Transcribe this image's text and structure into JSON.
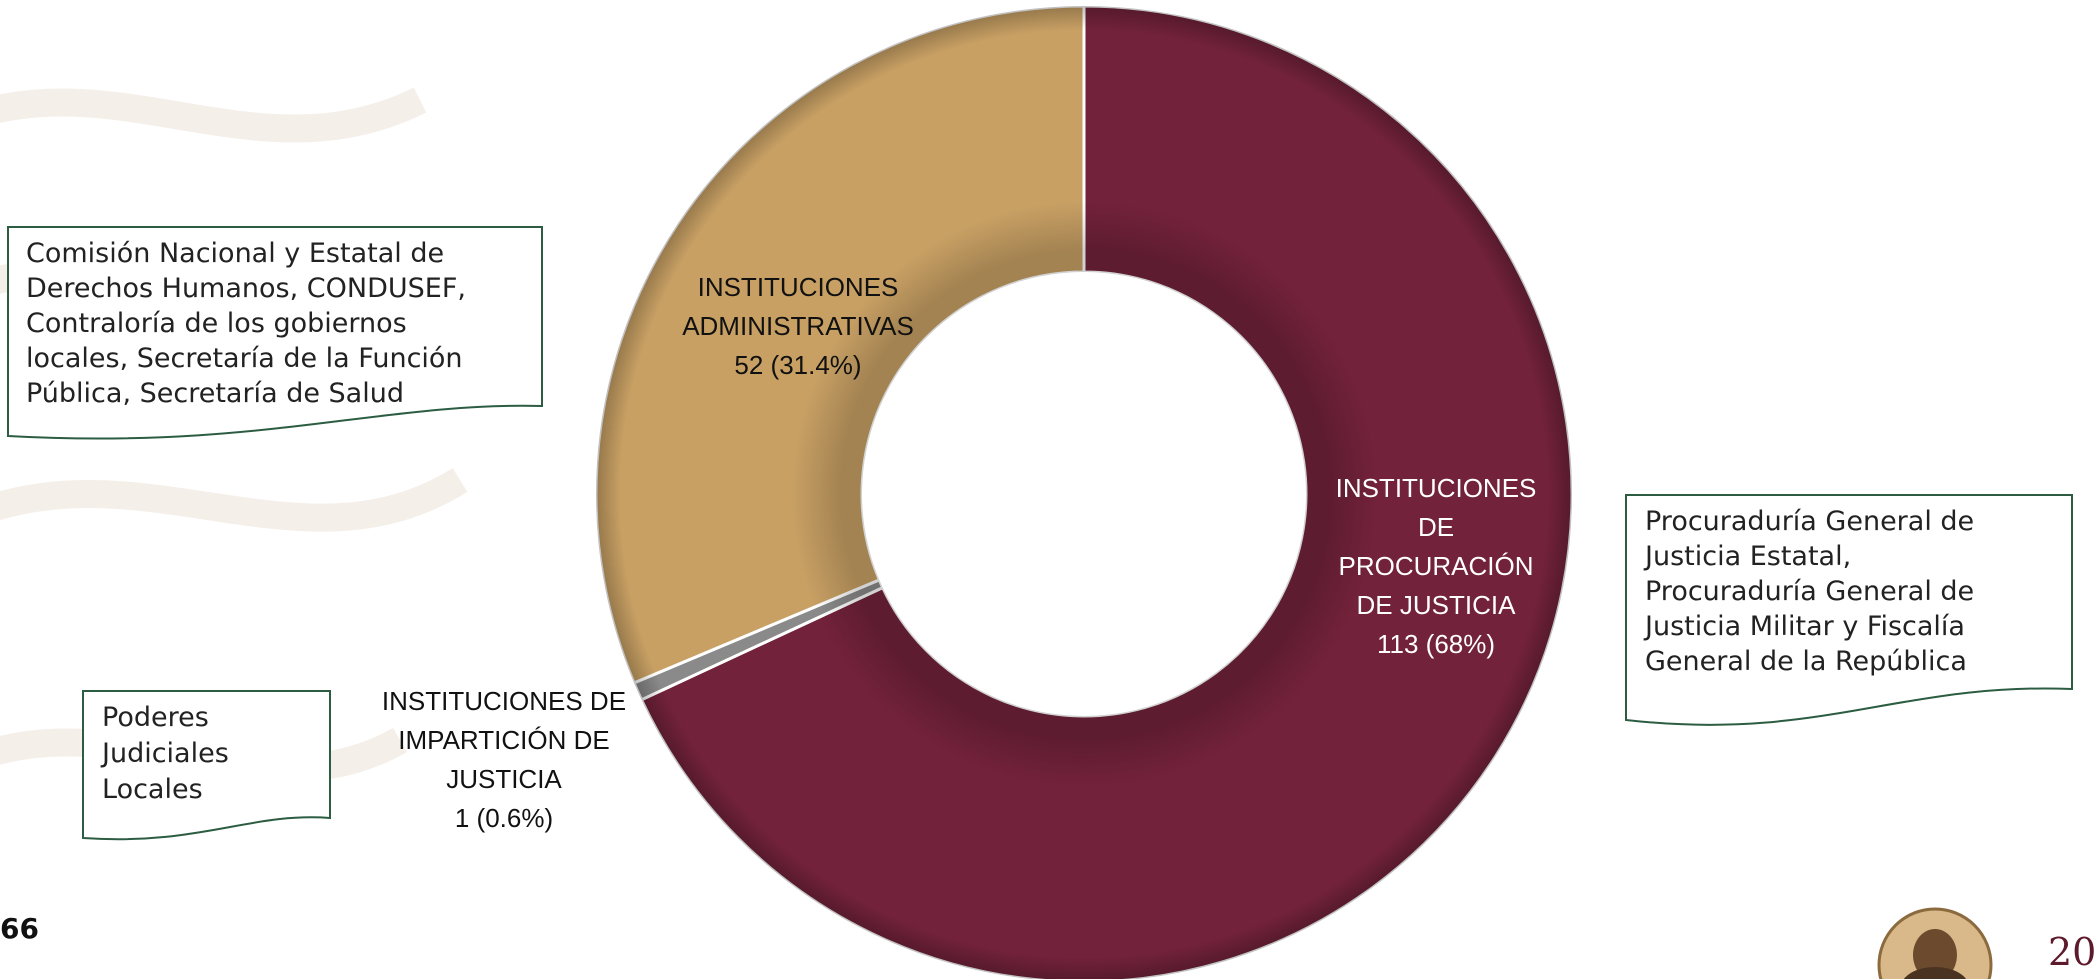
{
  "chart_data": {
    "type": "pie",
    "donut": true,
    "title": "",
    "categories": [
      "INSTITUCIONES DE PROCURACIÓN DE JUSTICIA",
      "INSTITUCIONES DE IMPARTICIÓN DE JUSTICIA",
      "INSTITUCIONES ADMINISTRATIVAS"
    ],
    "values": [
      113,
      1,
      52
    ],
    "percents": [
      "68%",
      "0.6%",
      "31.4%"
    ],
    "colors": [
      "#72223a",
      "#8a8a8a",
      "#c8a064"
    ],
    "labels": {
      "procuracion": "INSTITUCIONES\nDE\nPROCURACIÓN\nDE JUSTICIA\n113 (68%)",
      "imparticion": "INSTITUCIONES DE\nIMPARTICIÓN DE\nJUSTICIA\n1 (0.6%)",
      "administrativas": "INSTITUCIONES\nADMINISTRATIVAS\n52 (31.4%)"
    },
    "legend": "none"
  },
  "notes": {
    "administrativas": "Comisión Nacional y  Estatal de\nDerechos Humanos, CONDUSEF,\nContraloría de los gobiernos\nlocales, Secretaría de la Función\nPública, Secretaría de Salud",
    "imparticion": "Poderes\nJudiciales\nLocales",
    "procuracion": "Procuraduría General de\nJusticia Estatal,\nProcuraduría General de\nJusticia Militar  y Fiscalía\nGeneral de la República"
  },
  "page": {
    "number": "66",
    "logo_text": "20"
  }
}
